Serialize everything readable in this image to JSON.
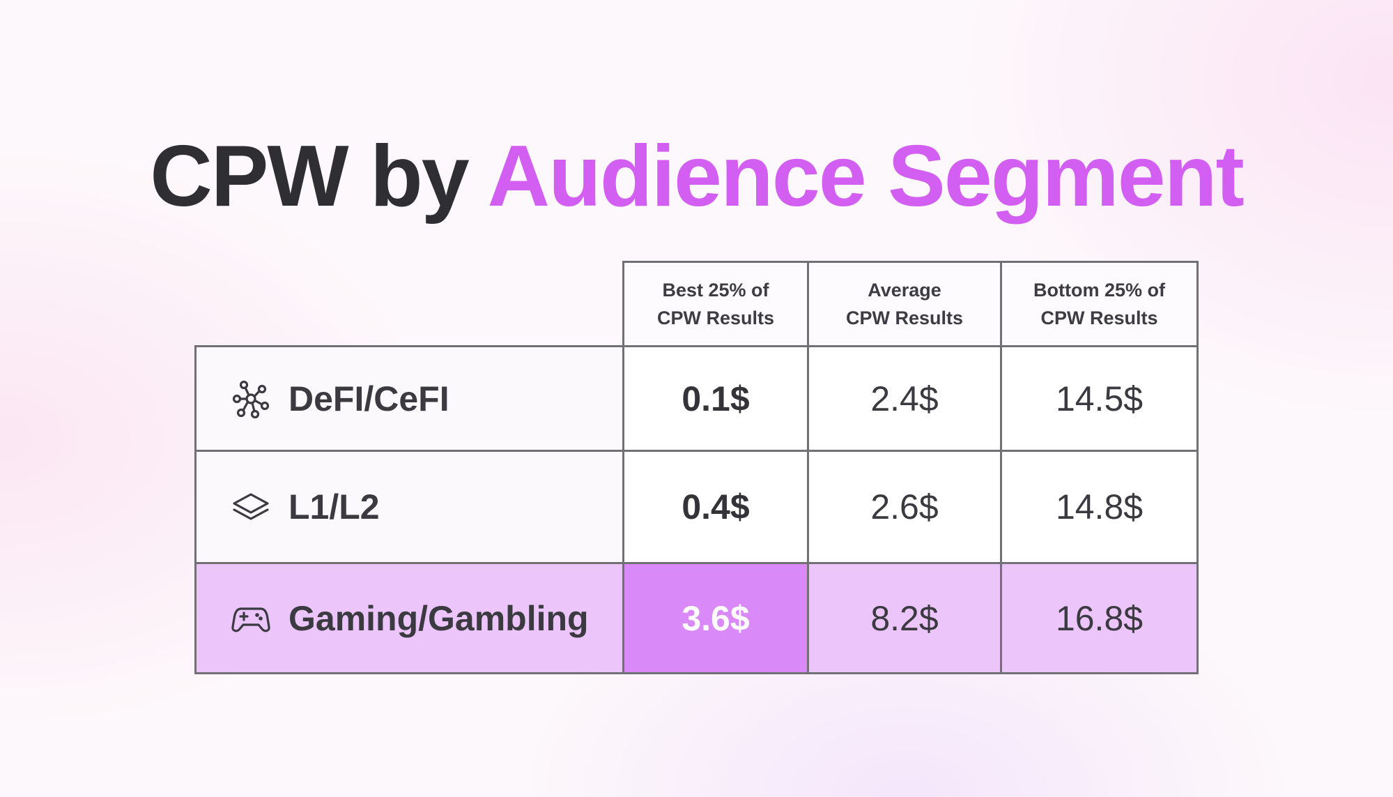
{
  "title": {
    "part1": "CPW by",
    "part2": "Audience Segment"
  },
  "chart_data": {
    "type": "table",
    "columns": [
      "Best 25% of\nCPW Results",
      "Average\nCPW Results",
      "Bottom 25% of\nCPW Results"
    ],
    "rows": [
      {
        "label": "DeFI/CeFI",
        "icon": "network-nodes-icon",
        "values": [
          "0.1$",
          "2.4$",
          "14.5$"
        ]
      },
      {
        "label": "L1/L2",
        "icon": "layers-icon",
        "values": [
          "0.4$",
          "2.6$",
          "14.8$"
        ]
      },
      {
        "label": "Gaming/Gambling",
        "icon": "gamepad-icon",
        "values": [
          "3.6$",
          "8.2$",
          "16.8$"
        ],
        "highlighted": true
      }
    ]
  },
  "colors": {
    "accent": "#d35ef2",
    "highlight_row": "#ecc6fb",
    "highlight_cell": "#d98af8",
    "border": "#717075"
  }
}
